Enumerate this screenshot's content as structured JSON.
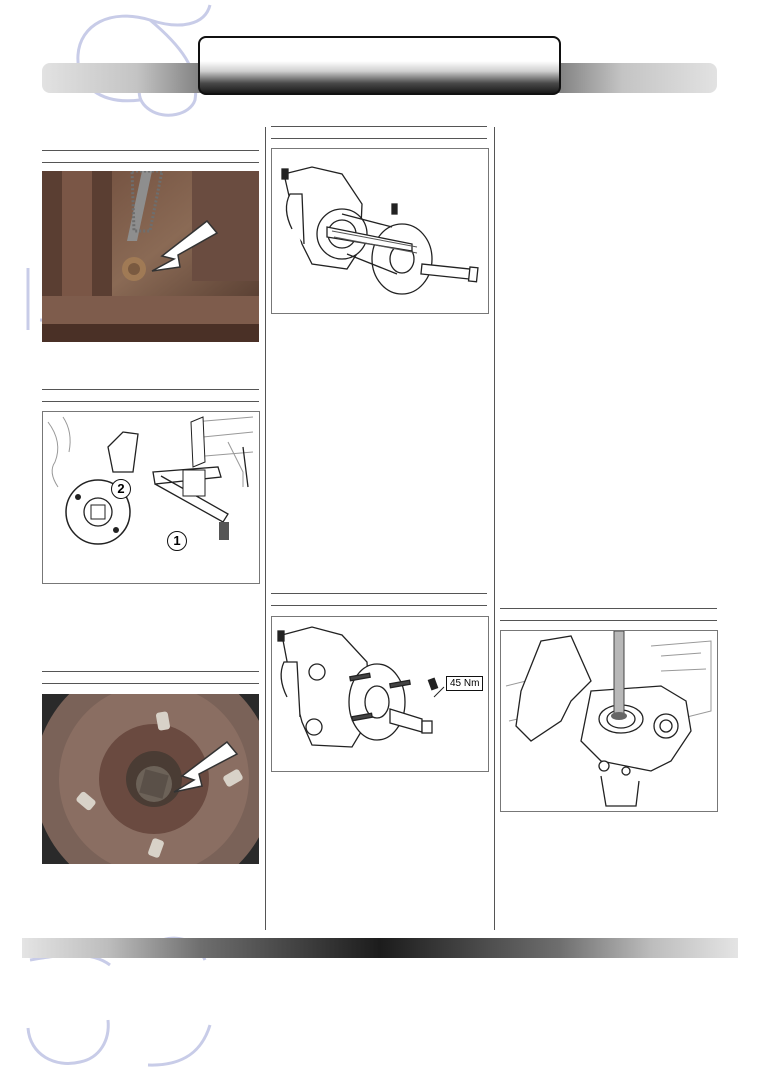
{
  "header": {
    "title": ""
  },
  "figures": {
    "fig_bracket_bolt": {
      "caption": ""
    },
    "fig_ball_joint": {
      "callouts": [
        "2",
        "1"
      ]
    },
    "fig_hub_nut": {
      "caption": ""
    },
    "fig_puller": {
      "caption": ""
    },
    "fig_hub_install": {
      "torque_label": "45 Nm"
    },
    "fig_knuckle_seal": {
      "caption": ""
    }
  },
  "colors": {
    "accent": "#1a1a1a",
    "watermark": "#c8cce8",
    "rule": "#555555"
  }
}
